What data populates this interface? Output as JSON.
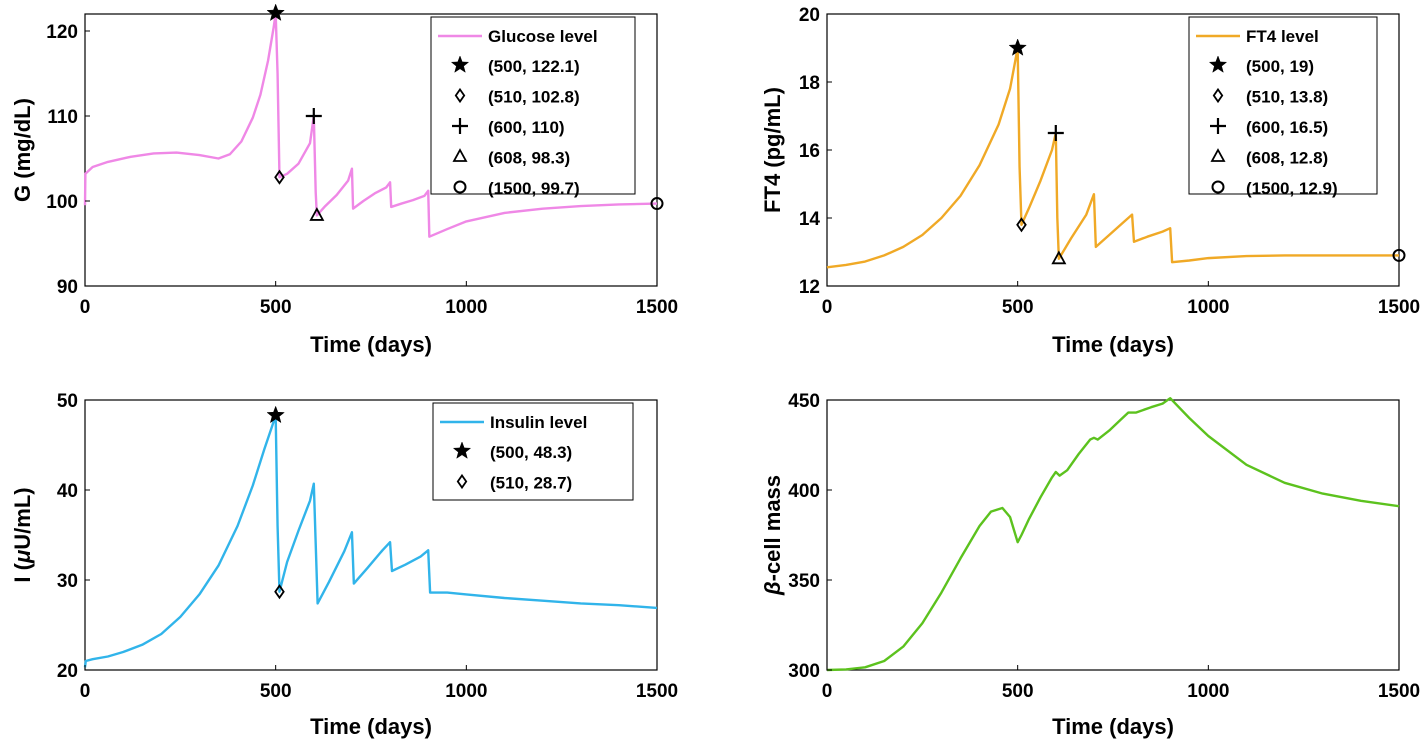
{
  "chart_data": [
    {
      "type": "line",
      "id": "glucose",
      "xlabel": "Time (days)",
      "ylabel": "G (mg/dL)",
      "xlim": [
        0,
        1500
      ],
      "ylim": [
        90,
        122
      ],
      "xticks": [
        "0",
        "500",
        "1000",
        "1500"
      ],
      "yticks": [
        "90",
        "100",
        "110",
        "120"
      ],
      "grid": false,
      "legend_position": "top-right",
      "series": [
        {
          "name": "Glucose level",
          "color": "#ef88e6",
          "x": [
            0,
            1,
            20,
            60,
            120,
            180,
            240,
            300,
            350,
            380,
            410,
            440,
            460,
            480,
            495,
            500,
            505,
            510,
            530,
            560,
            590,
            600,
            605,
            608,
            630,
            660,
            690,
            700,
            703,
            730,
            760,
            790,
            800,
            803,
            830,
            860,
            890,
            900,
            903,
            950,
            1000,
            1100,
            1200,
            1300,
            1400,
            1500
          ],
          "y": [
            99.5,
            103.2,
            104.0,
            104.6,
            105.2,
            105.6,
            105.7,
            105.4,
            105.0,
            105.5,
            107.0,
            109.8,
            112.5,
            116.5,
            120.5,
            122.1,
            115,
            102.8,
            103.2,
            104.4,
            106.8,
            110,
            101,
            98.3,
            99.4,
            100.7,
            102.4,
            103.8,
            99.1,
            100.0,
            100.9,
            101.6,
            102.2,
            99.3,
            99.7,
            100.1,
            100.6,
            101.2,
            95.8,
            96.7,
            97.6,
            98.6,
            99.1,
            99.4,
            99.6,
            99.7
          ]
        }
      ],
      "markers": [
        {
          "symbol": "star",
          "x": 500,
          "y": 122.1,
          "label": "(500,  122.1)"
        },
        {
          "symbol": "diamond",
          "x": 510,
          "y": 102.8,
          "label": "(510,  102.8)"
        },
        {
          "symbol": "plus",
          "x": 600,
          "y": 110,
          "label": "(600,  110)"
        },
        {
          "symbol": "triangle",
          "x": 608,
          "y": 98.3,
          "label": "(608,  98.3)"
        },
        {
          "symbol": "circle",
          "x": 1500,
          "y": 99.7,
          "label": "(1500,  99.7)"
        }
      ]
    },
    {
      "type": "line",
      "id": "ft4",
      "xlabel": "Time (days)",
      "ylabel": "FT4 (pg/mL)",
      "xlim": [
        0,
        1500
      ],
      "ylim": [
        12,
        20
      ],
      "xticks": [
        "0",
        "500",
        "1000",
        "1500"
      ],
      "yticks": [
        "12",
        "14",
        "16",
        "18",
        "20"
      ],
      "grid": false,
      "legend_position": "top-right",
      "series": [
        {
          "name": "FT4 level",
          "color": "#f0a926",
          "x": [
            0,
            50,
            100,
            150,
            200,
            250,
            300,
            350,
            400,
            450,
            480,
            500,
            505,
            510,
            530,
            560,
            590,
            600,
            604,
            608,
            640,
            680,
            700,
            705,
            740,
            780,
            800,
            805,
            840,
            880,
            900,
            905,
            950,
            1000,
            1100,
            1200,
            1300,
            1400,
            1500
          ],
          "y": [
            12.55,
            12.62,
            12.72,
            12.9,
            13.15,
            13.5,
            14.0,
            14.65,
            15.55,
            16.75,
            17.8,
            19.0,
            15.5,
            13.8,
            14.3,
            15.1,
            16.0,
            16.5,
            14.0,
            12.8,
            13.4,
            14.1,
            14.7,
            13.15,
            13.5,
            13.9,
            14.1,
            13.3,
            13.45,
            13.6,
            13.7,
            12.7,
            12.75,
            12.82,
            12.88,
            12.9,
            12.9,
            12.9,
            12.9
          ]
        }
      ],
      "markers": [
        {
          "symbol": "star",
          "x": 500,
          "y": 19,
          "label": "(500,  19)"
        },
        {
          "symbol": "diamond",
          "x": 510,
          "y": 13.8,
          "label": "(510,  13.8)"
        },
        {
          "symbol": "plus",
          "x": 600,
          "y": 16.5,
          "label": "(600,  16.5)"
        },
        {
          "symbol": "triangle",
          "x": 608,
          "y": 12.8,
          "label": "(608,  12.8)"
        },
        {
          "symbol": "circle",
          "x": 1500,
          "y": 12.9,
          "label": "(1500,  12.9)"
        }
      ]
    },
    {
      "type": "line",
      "id": "insulin",
      "xlabel": "Time (days)",
      "ylabel": "I (μU/mL)",
      "ylabel_parts": [
        "I (",
        "μ",
        "U/mL)"
      ],
      "xlim": [
        0,
        1500
      ],
      "ylim": [
        20,
        50
      ],
      "xticks": [
        "0",
        "500",
        "1000",
        "1500"
      ],
      "yticks": [
        "20",
        "30",
        "40",
        "50"
      ],
      "grid": false,
      "legend_position": "top-right",
      "series": [
        {
          "name": "Insulin level",
          "color": "#31b4ea",
          "x": [
            0,
            2,
            20,
            60,
            100,
            150,
            200,
            250,
            300,
            350,
            400,
            440,
            470,
            490,
            500,
            505,
            510,
            530,
            560,
            590,
            600,
            605,
            610,
            640,
            680,
            700,
            705,
            740,
            780,
            800,
            805,
            840,
            880,
            900,
            905,
            950,
            1000,
            1100,
            1200,
            1300,
            1400,
            1500
          ],
          "y": [
            20.3,
            21.0,
            21.2,
            21.5,
            22.0,
            22.8,
            24.0,
            25.9,
            28.4,
            31.6,
            36.0,
            40.5,
            44.5,
            47.0,
            48.3,
            36.0,
            28.7,
            32.0,
            35.5,
            38.8,
            40.7,
            34.0,
            27.4,
            29.8,
            33.2,
            35.3,
            29.6,
            31.3,
            33.3,
            34.2,
            31.0,
            31.7,
            32.6,
            33.3,
            28.6,
            28.6,
            28.4,
            28.0,
            27.7,
            27.4,
            27.2,
            26.9
          ]
        }
      ],
      "markers": [
        {
          "symbol": "star",
          "x": 500,
          "y": 48.3,
          "label": "(500,  48.3)"
        },
        {
          "symbol": "diamond",
          "x": 510,
          "y": 28.7,
          "label": "(510,  28.7)"
        }
      ]
    },
    {
      "type": "line",
      "id": "beta",
      "xlabel": "Time (days)",
      "ylabel": "β-cell mass",
      "ylabel_parts": [
        "",
        "β",
        "-cell mass"
      ],
      "xlim": [
        0,
        1500
      ],
      "ylim": [
        300,
        450
      ],
      "xticks": [
        "0",
        "500",
        "1000",
        "1500"
      ],
      "yticks": [
        "300",
        "350",
        "400",
        "450"
      ],
      "grid": false,
      "legend_position": "none",
      "series": [
        {
          "name": "β-cell mass",
          "color": "#5cc21e",
          "x": [
            0,
            50,
            100,
            150,
            200,
            250,
            300,
            350,
            400,
            430,
            460,
            480,
            490,
            500,
            510,
            530,
            560,
            590,
            600,
            610,
            630,
            660,
            690,
            700,
            710,
            740,
            770,
            790,
            800,
            810,
            850,
            880,
            900,
            950,
            1000,
            1100,
            1200,
            1300,
            1400,
            1500
          ],
          "y": [
            300,
            300.3,
            301.5,
            305,
            313,
            326,
            343,
            362,
            380,
            388,
            390,
            385,
            378,
            371,
            375,
            384,
            396,
            407,
            410,
            408,
            411,
            420,
            428,
            429,
            428,
            433,
            439,
            443,
            443,
            443,
            446,
            448,
            451,
            440,
            430,
            414,
            404,
            398,
            394,
            391
          ]
        }
      ],
      "markers": []
    }
  ]
}
